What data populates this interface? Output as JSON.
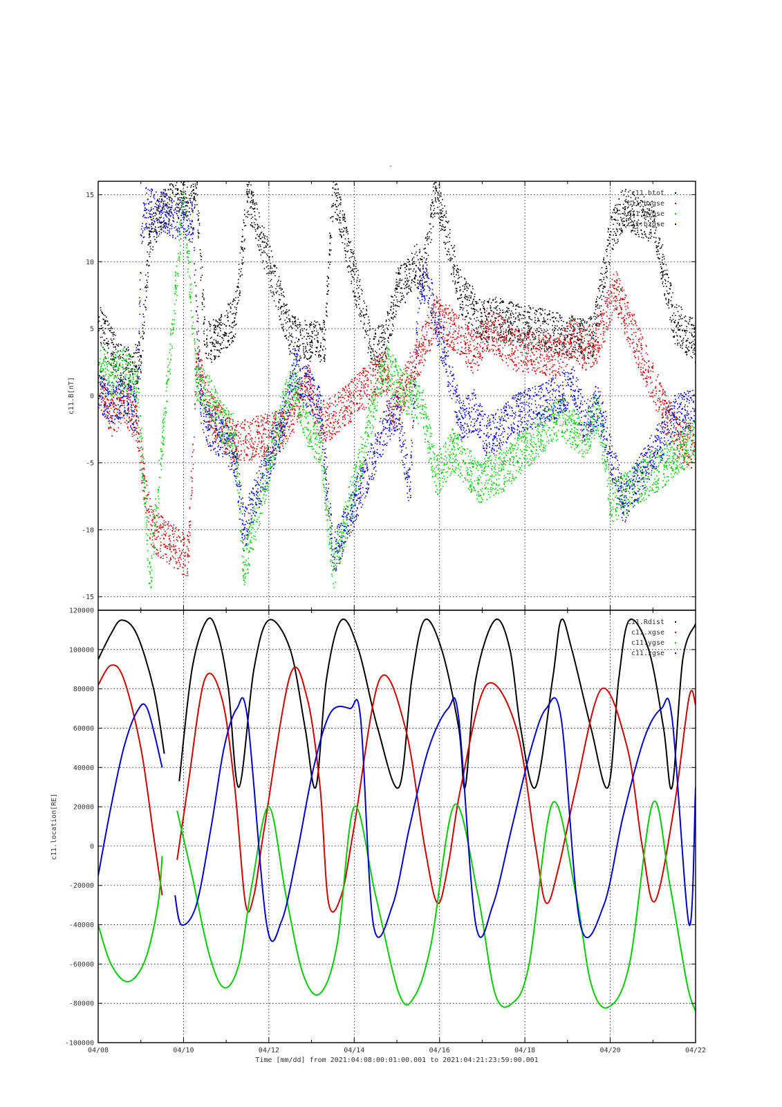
{
  "figure": {
    "title": "-",
    "time_axis_label": "Time [mm/dd]  from 2021:04:08:00:01:00.001  to  2021:04:21:23:59:00.001"
  },
  "colors": {
    "black": "#000000",
    "red": "#cc0000",
    "green": "#00cc00",
    "blue": "#0000cc"
  },
  "chart_data": [
    {
      "type": "scatter",
      "ylabel": "c11.B[nT]",
      "xlabel": "",
      "x_unit": "days since 04/08",
      "xlim": [
        0,
        14
      ],
      "ylim": [
        -16,
        16
      ],
      "yticks": [
        -15,
        -10,
        -5,
        0,
        5,
        10,
        15
      ],
      "xtick_labels": [
        "04/08",
        "04/10",
        "04/12",
        "04/14",
        "04/16",
        "04/18",
        "04/20",
        "04/22"
      ],
      "grid": true,
      "legend_position": "top-right",
      "series": [
        {
          "name": "c11.btot",
          "color": "#000000",
          "x": [
            0.0,
            0.5,
            0.8,
            1.0,
            1.2,
            1.5,
            2.3,
            2.5,
            2.8,
            3.0,
            3.2,
            3.5,
            4.5,
            4.7,
            5.0,
            5.3,
            5.5,
            6.4,
            6.7,
            7.0,
            7.2,
            7.4,
            7.6,
            7.9,
            8.5,
            8.8,
            9.0,
            9.3,
            9.6,
            11.0,
            11.3,
            11.6,
            12.0,
            12.3,
            13.0,
            13.5,
            14.0
          ],
          "y": [
            5.5,
            2.3,
            2.0,
            3.0,
            12.0,
            14.0,
            15.5,
            3.8,
            4.5,
            5.2,
            5.8,
            15.0,
            4.5,
            4.2,
            4.0,
            4.2,
            15.5,
            3.5,
            3.8,
            8.0,
            8.5,
            10.0,
            9.0,
            15.5,
            7.5,
            6.5,
            5.5,
            5.8,
            5.5,
            4.5,
            4.2,
            4.5,
            12.0,
            14.0,
            13.0,
            5.5,
            4.0
          ]
        },
        {
          "name": "c11.bxgse",
          "color": "#cc0000",
          "x": [
            0.0,
            0.3,
            0.6,
            0.9,
            1.05,
            1.25,
            2.1,
            2.3,
            2.6,
            2.9,
            3.2,
            4.3,
            4.6,
            4.9,
            5.2,
            5.5,
            6.7,
            6.9,
            7.2,
            7.5,
            7.9,
            8.5,
            8.8,
            9.1,
            9.4,
            9.7,
            10.8,
            11.1,
            11.4,
            11.7,
            12.1,
            13.5,
            14.0
          ],
          "y": [
            1.0,
            -1.5,
            -0.5,
            -2.0,
            -6.0,
            -10.0,
            -12.0,
            2.5,
            -1.0,
            -2.5,
            -3.5,
            -2.5,
            -1.0,
            1.0,
            -2.0,
            -1.5,
            2.0,
            -1.5,
            1.0,
            3.0,
            6.0,
            4.5,
            3.0,
            5.0,
            4.5,
            3.5,
            3.0,
            4.5,
            3.5,
            4.0,
            8.0,
            -3.0,
            -4.0
          ]
        },
        {
          "name": "c11.bygse",
          "color": "#00cc00",
          "x": [
            0.0,
            0.3,
            0.6,
            0.9,
            1.1,
            1.2,
            2.0,
            2.3,
            2.6,
            2.9,
            3.2,
            3.4,
            4.3,
            4.6,
            4.9,
            5.2,
            5.5,
            6.7,
            7.0,
            7.3,
            7.6,
            7.9,
            8.3,
            8.6,
            8.9,
            9.2,
            9.5,
            9.8,
            10.8,
            11.1,
            11.4,
            11.7,
            12.0,
            13.3,
            13.7,
            14.0
          ],
          "y": [
            2.5,
            1.5,
            2.0,
            1.0,
            -8.0,
            -14.0,
            15.0,
            1.0,
            0.0,
            -2.0,
            -3.0,
            -13.0,
            -1.0,
            1.0,
            -2.5,
            -3.5,
            -13.0,
            2.5,
            1.0,
            0.0,
            -1.0,
            -6.0,
            -4.0,
            -5.0,
            -6.5,
            -6.0,
            -5.5,
            -4.5,
            -1.5,
            -2.5,
            -3.0,
            -1.0,
            -8.0,
            -5.0,
            -4.0,
            -3.0
          ]
        },
        {
          "name": "c11.bzgse",
          "color": "#0000cc",
          "x": [
            0.0,
            0.3,
            0.6,
            0.9,
            1.0,
            1.1,
            2.2,
            2.4,
            2.6,
            2.9,
            3.2,
            3.4,
            4.3,
            4.6,
            4.9,
            5.2,
            5.5,
            6.7,
            7.0,
            7.3,
            7.5,
            7.7,
            8.5,
            8.8,
            9.1,
            9.4,
            9.7,
            10.8,
            11.1,
            11.4,
            11.7,
            12.3,
            13.5,
            14.0
          ],
          "y": [
            0.5,
            -0.5,
            0.0,
            -1.5,
            12.0,
            14.0,
            13.0,
            -0.5,
            -2.5,
            -3.0,
            -4.5,
            -10.0,
            -2.0,
            2.0,
            0.5,
            -1.0,
            -12.0,
            -2.5,
            -1.0,
            -7.0,
            8.0,
            8.5,
            -2.0,
            -1.0,
            -3.0,
            -2.5,
            -1.5,
            0.0,
            1.0,
            -2.0,
            -0.5,
            -8.0,
            -1.5,
            -1.0
          ]
        }
      ]
    },
    {
      "type": "line",
      "ylabel": "c11.location[RE]",
      "xlabel": "Time [mm/dd]  from 2021:04:08:00:01:00.001  to  2021:04:21:23:59:00.001",
      "x_unit": "days since 04/08",
      "xlim": [
        0,
        14
      ],
      "ylim": [
        -100000,
        120000
      ],
      "yticks": [
        -100000,
        -80000,
        -60000,
        -40000,
        -20000,
        0,
        20000,
        40000,
        60000,
        80000,
        100000,
        120000
      ],
      "xtick_labels": [
        "04/08",
        "04/10",
        "04/12",
        "04/14",
        "04/16",
        "04/18",
        "04/20",
        "04/22"
      ],
      "grid": true,
      "legend_position": "top-right",
      "series": [
        {
          "name": "c11.Rdist",
          "color": "#000000",
          "x": [
            0.0,
            0.3,
            0.55,
            0.9,
            1.3,
            1.55,
            1.75,
            1.9,
            2.2,
            2.55,
            2.8,
            3.05,
            3.3,
            3.65,
            4.0,
            4.5,
            4.85,
            5.1,
            5.35,
            5.7,
            6.1,
            6.55,
            7.05,
            7.35,
            7.65,
            8.05,
            8.45,
            8.6,
            8.85,
            9.3,
            9.65,
            9.9,
            10.25,
            10.65,
            10.85,
            11.1,
            11.55,
            11.95,
            12.2,
            12.45,
            12.9,
            13.25,
            13.45,
            13.7,
            14.0
          ],
          "y": [
            95000,
            108000,
            115000,
            108000,
            80000,
            47000,
            null,
            33000,
            90000,
            115000,
            108000,
            80000,
            30000,
            90000,
            115000,
            100000,
            60000,
            30000,
            85000,
            115000,
            100000,
            60000,
            30000,
            85000,
            115000,
            100000,
            60000,
            30000,
            85000,
            115000,
            100000,
            60000,
            30000,
            85000,
            115000,
            100000,
            60000,
            30000,
            85000,
            115000,
            100000,
            60000,
            30000,
            95000,
            113000
          ]
        },
        {
          "name": "c11.xgse",
          "color": "#cc0000",
          "x": [
            0.0,
            0.3,
            0.6,
            1.0,
            1.3,
            1.5,
            1.75,
            1.85,
            2.1,
            2.5,
            2.9,
            3.2,
            3.45,
            3.65,
            3.9,
            4.5,
            4.9,
            5.2,
            5.4,
            5.7,
            6.0,
            6.6,
            7.2,
            7.65,
            7.95,
            8.2,
            8.5,
            9.1,
            9.8,
            10.25,
            10.5,
            10.8,
            11.2,
            11.8,
            12.4,
            12.75,
            13.05,
            13.5,
            13.85,
            14.0
          ],
          "y": [
            82000,
            92000,
            85000,
            50000,
            5000,
            -25000,
            null,
            -7000,
            30000,
            85000,
            75000,
            30000,
            -29000,
            -25000,
            10000,
            87000,
            75000,
            30000,
            -29000,
            -25000,
            10000,
            85000,
            60000,
            0,
            -29000,
            -10000,
            30000,
            82000,
            60000,
            0,
            -29000,
            -10000,
            30000,
            80000,
            50000,
            0,
            -28000,
            20000,
            76000,
            72000
          ]
        },
        {
          "name": "c11.ygse",
          "color": "#00cc00",
          "x": [
            0.0,
            0.3,
            0.7,
            1.1,
            1.4,
            1.5,
            1.75,
            1.85,
            2.2,
            2.6,
            2.95,
            3.3,
            3.6,
            4.0,
            4.4,
            4.8,
            5.2,
            5.6,
            6.0,
            6.5,
            7.05,
            7.4,
            7.8,
            8.35,
            8.9,
            9.3,
            9.7,
            10.1,
            10.65,
            11.2,
            11.55,
            11.95,
            12.45,
            13.0,
            13.4,
            13.8,
            14.0
          ],
          "y": [
            -40000,
            -60000,
            -69000,
            -58000,
            -30000,
            -5000,
            null,
            18000,
            -15000,
            -55000,
            -72000,
            -60000,
            -20000,
            20000,
            -25000,
            -65000,
            -75000,
            -50000,
            20000,
            -25000,
            -75000,
            -77000,
            -50000,
            21000,
            -25000,
            -75000,
            -80000,
            -60000,
            22000,
            -25000,
            -70000,
            -82000,
            -60000,
            22000,
            -20000,
            -70000,
            -84000
          ]
        },
        {
          "name": "c11.zgse",
          "color": "#0000cc",
          "x": [
            0.0,
            0.3,
            0.6,
            0.9,
            1.15,
            1.5,
            1.75,
            1.8,
            1.95,
            2.3,
            2.65,
            2.95,
            3.25,
            3.5,
            3.95,
            4.3,
            4.65,
            5.05,
            5.45,
            5.9,
            6.15,
            6.45,
            6.9,
            7.3,
            7.75,
            8.2,
            8.45,
            8.85,
            9.25,
            9.7,
            10.15,
            10.5,
            10.85,
            11.3,
            11.85,
            12.3,
            12.8,
            13.2,
            13.45,
            13.85,
            14.0
          ],
          "y": [
            -15000,
            20000,
            50000,
            68000,
            70000,
            40000,
            null,
            -25000,
            -40000,
            -30000,
            10000,
            50000,
            70000,
            65000,
            -40000,
            -38000,
            -5000,
            40000,
            68000,
            70000,
            65000,
            -40000,
            -30000,
            10000,
            50000,
            70000,
            65000,
            -40000,
            -30000,
            10000,
            50000,
            70000,
            65000,
            -40000,
            -30000,
            15000,
            55000,
            70000,
            65000,
            -40000,
            30000
          ]
        }
      ]
    }
  ]
}
